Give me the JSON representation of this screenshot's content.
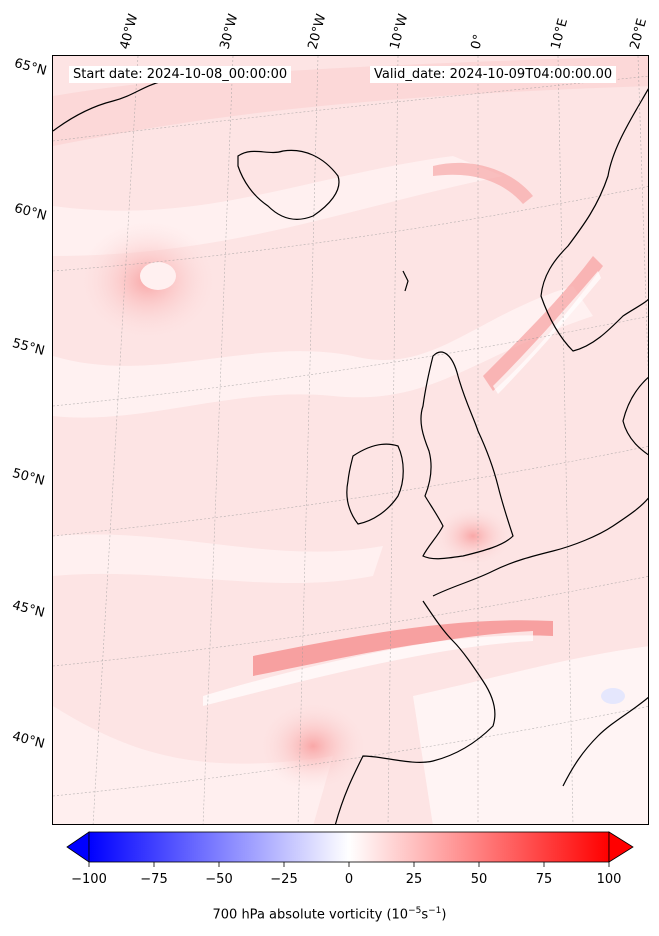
{
  "map": {
    "start_date_label": "Start date: 2024-10-08_00:00:00",
    "valid_date_label": "Valid_date: 2024-10-09T04:00:00.00",
    "lon_labels": [
      "40°W",
      "30°W",
      "20°W",
      "10°W",
      "0°",
      "10°E",
      "20°E"
    ],
    "lat_labels": [
      "65°N",
      "60°N",
      "55°N",
      "50°N",
      "45°N",
      "40°N"
    ]
  },
  "colorbar": {
    "ticks": [
      "−100",
      "−75",
      "−50",
      "−25",
      "0",
      "25",
      "50",
      "75",
      "100"
    ],
    "tick_values": [
      -100,
      -75,
      -50,
      -25,
      0,
      25,
      50,
      75,
      100
    ],
    "range": [
      -100,
      100
    ],
    "label_main": "700 hPa absolute vorticity (10",
    "label_exp1": "−5",
    "label_mid": "s",
    "label_exp2": "−1",
    "label_end": ")",
    "colors": {
      "neg": "#0000ff",
      "zero": "#ffffff",
      "pos": "#ff0000"
    }
  }
}
